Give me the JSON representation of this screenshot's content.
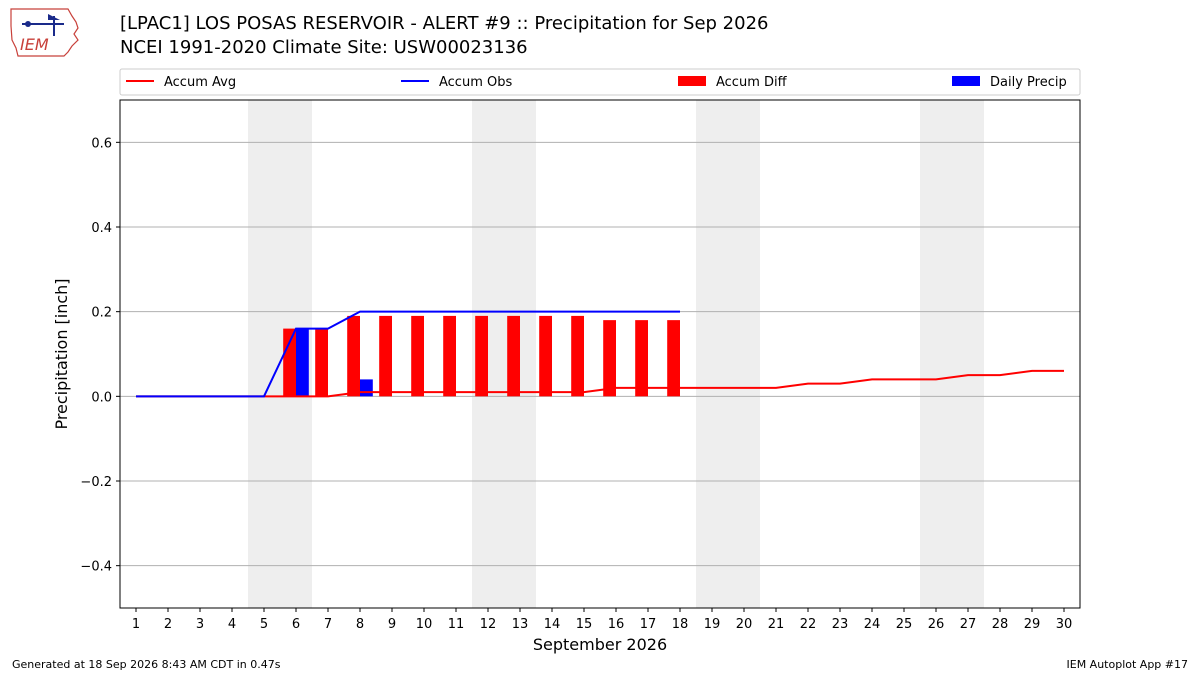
{
  "header": {
    "title": "[LPAC1] LOS POSAS RESERVOIR - ALERT #9 :: Precipitation for Sep 2026",
    "subtitle": "NCEI 1991-2020 Climate Site: USW00023136"
  },
  "logo": {
    "text": "IEM",
    "icon": "iem-iowa-logo-icon"
  },
  "footer": {
    "generated": "Generated at 18 Sep 2026 8:43 AM CDT in 0.47s",
    "app": "IEM Autoplot App #17"
  },
  "colors": {
    "avg": "#ff0000",
    "obs": "#0000ff",
    "diff": "#ff0000",
    "daily": "#0000ff",
    "weekend": "#eeeeee",
    "grid": "#b0b0b0"
  },
  "chart_data": {
    "type": "bar",
    "xlabel": "September 2026",
    "ylabel": "Precipitation [inch]",
    "ylim": [
      -0.5,
      0.7
    ],
    "yticks": [
      -0.4,
      -0.2,
      0.0,
      0.2,
      0.4,
      0.6
    ],
    "ytick_labels": [
      "−0.4",
      "−0.2",
      "0.0",
      "0.2",
      "0.4",
      "0.6"
    ],
    "xlim": [
      0.5,
      30.5
    ],
    "days": [
      1,
      2,
      3,
      4,
      5,
      6,
      7,
      8,
      9,
      10,
      11,
      12,
      13,
      14,
      15,
      16,
      17,
      18,
      19,
      20,
      21,
      22,
      23,
      24,
      25,
      26,
      27,
      28,
      29,
      30
    ],
    "weekend_spans": [
      [
        4.5,
        6.5
      ],
      [
        11.5,
        13.5
      ],
      [
        18.5,
        20.5
      ],
      [
        25.5,
        27.5
      ]
    ],
    "grid": "horizontal",
    "legend_placement": "top",
    "series": [
      {
        "name": "Accum Avg",
        "type": "line",
        "color": "#ff0000",
        "x": [
          1,
          2,
          3,
          4,
          5,
          6,
          7,
          8,
          9,
          10,
          11,
          12,
          13,
          14,
          15,
          16,
          17,
          18,
          19,
          20,
          21,
          22,
          23,
          24,
          25,
          26,
          27,
          28,
          29,
          30
        ],
        "values": [
          0,
          0,
          0,
          0,
          0,
          0,
          0,
          0.01,
          0.01,
          0.01,
          0.01,
          0.01,
          0.01,
          0.01,
          0.01,
          0.02,
          0.02,
          0.02,
          0.02,
          0.02,
          0.02,
          0.03,
          0.03,
          0.04,
          0.04,
          0.04,
          0.05,
          0.05,
          0.06,
          0.06
        ]
      },
      {
        "name": "Accum Obs",
        "type": "line",
        "color": "#0000ff",
        "x": [
          1,
          2,
          3,
          4,
          5,
          6,
          7,
          8,
          9,
          10,
          11,
          12,
          13,
          14,
          15,
          16,
          17,
          18
        ],
        "values": [
          0,
          0,
          0,
          0,
          0,
          0.16,
          0.16,
          0.2,
          0.2,
          0.2,
          0.2,
          0.2,
          0.2,
          0.2,
          0.2,
          0.2,
          0.2,
          0.2
        ]
      },
      {
        "name": "Accum Diff",
        "type": "bar",
        "color": "#ff0000",
        "x": [
          6,
          7,
          8,
          9,
          10,
          11,
          12,
          13,
          14,
          15,
          16,
          17,
          18
        ],
        "values": [
          0.16,
          0.16,
          0.19,
          0.19,
          0.19,
          0.19,
          0.19,
          0.19,
          0.19,
          0.19,
          0.18,
          0.18,
          0.18
        ]
      },
      {
        "name": "Daily Precip",
        "type": "bar",
        "color": "#0000ff",
        "x": [
          6,
          8
        ],
        "values": [
          0.16,
          0.04
        ]
      }
    ]
  }
}
